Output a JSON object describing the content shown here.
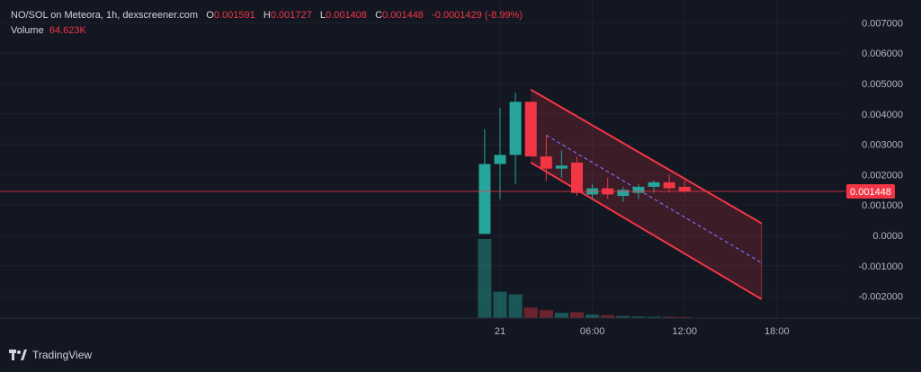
{
  "header": {
    "pair": "NO/SOL on Meteora, 1h, dexscreener.com",
    "o_label": "O",
    "o_value": "0.001591",
    "h_label": "H",
    "h_value": "0.001727",
    "l_label": "L",
    "l_value": "0.001408",
    "c_label": "C",
    "c_value": "0.001448",
    "change": "-0.0001429 (-8.99%)",
    "volume_label": "Volume",
    "volume_value": "64.623K"
  },
  "current_price_label": "0.001448",
  "branding": {
    "name": "TradingView",
    "icon": "tradingview-logo-icon"
  },
  "colors": {
    "up": "#26a69a",
    "down": "#f23645",
    "channel": "#f23645",
    "midline": "#7b6cf6",
    "background": "#131722"
  },
  "chart_data": {
    "type": "candlestick",
    "title": "NO/SOL on Meteora, 1h",
    "ylim": [
      -0.0027,
      0.0074
    ],
    "y_ticks": [
      "0.007000",
      "0.006000",
      "0.005000",
      "0.004000",
      "0.003000",
      "0.002000",
      "0.001000",
      "0.0000",
      "-0.001000",
      "-0.002000"
    ],
    "y_tick_values": [
      0.007,
      0.006,
      0.005,
      0.004,
      0.003,
      0.002,
      0.001,
      0.0,
      -0.001,
      -0.002
    ],
    "x_ticks": [
      "21",
      "06:00",
      "12:00",
      "18:00"
    ],
    "x_tick_hours": [
      0,
      6,
      12,
      18
    ],
    "current_price": 0.001448,
    "candles": [
      {
        "t": -1.0,
        "o": 5e-05,
        "h": 0.0035,
        "l": 5e-05,
        "c": 0.00235,
        "v": 30
      },
      {
        "t": 0.0,
        "o": 0.00235,
        "h": 0.0042,
        "l": 0.0012,
        "c": 0.00265,
        "v": 10
      },
      {
        "t": 1.0,
        "o": 0.00265,
        "h": 0.0047,
        "l": 0.0017,
        "c": 0.0044,
        "v": 9
      },
      {
        "t": 2.0,
        "o": 0.0044,
        "h": 0.0044,
        "l": 0.0026,
        "c": 0.0026,
        "v": 4
      },
      {
        "t": 3.0,
        "o": 0.0026,
        "h": 0.0033,
        "l": 0.0018,
        "c": 0.0022,
        "v": 3
      },
      {
        "t": 4.0,
        "o": 0.0022,
        "h": 0.0028,
        "l": 0.0019,
        "c": 0.0023,
        "v": 2
      },
      {
        "t": 5.0,
        "o": 0.0024,
        "h": 0.0026,
        "l": 0.0013,
        "c": 0.0014,
        "v": 2.2
      },
      {
        "t": 6.0,
        "o": 0.00135,
        "h": 0.0017,
        "l": 0.0012,
        "c": 0.00155,
        "v": 1.3
      },
      {
        "t": 7.0,
        "o": 0.00155,
        "h": 0.0019,
        "l": 0.0012,
        "c": 0.00135,
        "v": 1.1
      },
      {
        "t": 8.0,
        "o": 0.0013,
        "h": 0.0016,
        "l": 0.0011,
        "c": 0.0015,
        "v": 0.8
      },
      {
        "t": 9.0,
        "o": 0.0014,
        "h": 0.0017,
        "l": 0.0012,
        "c": 0.0016,
        "v": 0.6
      },
      {
        "t": 10.0,
        "o": 0.0016,
        "h": 0.0018,
        "l": 0.0014,
        "c": 0.00175,
        "v": 0.5
      },
      {
        "t": 11.0,
        "o": 0.00175,
        "h": 0.002,
        "l": 0.0014,
        "c": 0.00155,
        "v": 0.5
      },
      {
        "t": 12.0,
        "o": 0.0016,
        "h": 0.0018,
        "l": 0.0014,
        "c": 0.00145,
        "v": 0.4
      }
    ],
    "channel": {
      "upper": [
        [
          2.0,
          0.0048
        ],
        [
          17.0,
          0.0004
        ]
      ],
      "lower": [
        [
          2.0,
          0.0024
        ],
        [
          17.0,
          -0.0021
        ]
      ],
      "mid": [
        [
          3.0,
          0.0033
        ],
        [
          17.0,
          -0.0009
        ]
      ]
    },
    "grid": true
  }
}
